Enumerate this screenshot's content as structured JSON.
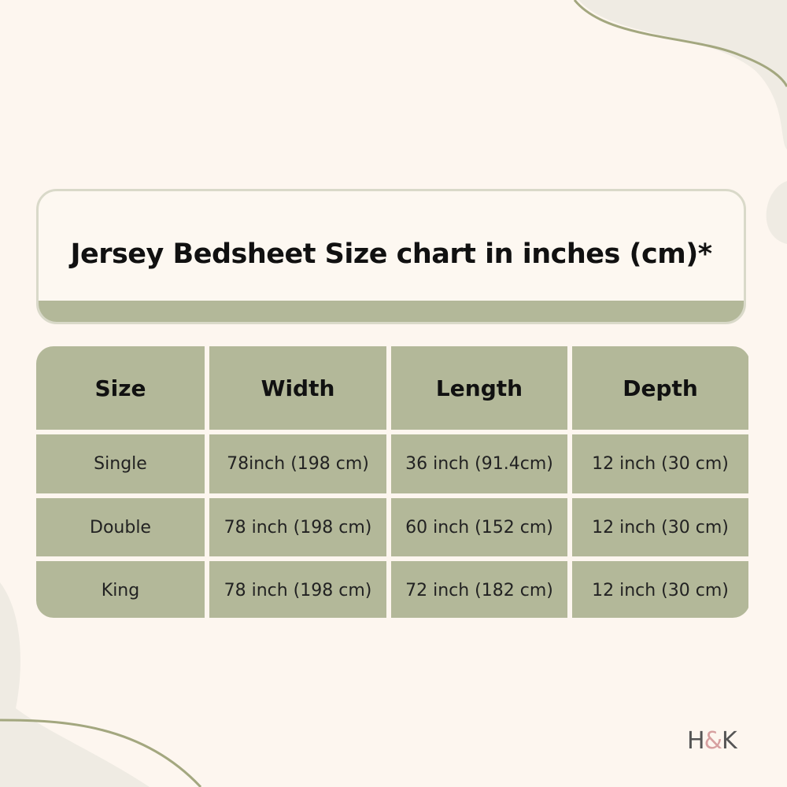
{
  "title": "Jersey Bedsheet Size chart in inches (cm)*",
  "table": {
    "headers": [
      "Size",
      "Width",
      "Length",
      "Depth"
    ],
    "rows": [
      [
        "Single",
        "78inch (198 cm)",
        "36 inch (91.4cm)",
        "12 inch (30 cm)"
      ],
      [
        "Double",
        "78 inch (198 cm)",
        "60 inch (152 cm)",
        "12 inch (30 cm)"
      ],
      [
        "King",
        "78 inch (198 cm)",
        "72 inch (182 cm)",
        "12 inch (30 cm)"
      ]
    ]
  },
  "logo": {
    "left": "H",
    "amp": "&",
    "right": "K"
  },
  "colors": {
    "background": "#fdf6ef",
    "accent_green": "#b3b899",
    "decor_line": "#a3a77f",
    "decor_fill": "#efebe3",
    "logo_accent": "#d7a0a0"
  }
}
